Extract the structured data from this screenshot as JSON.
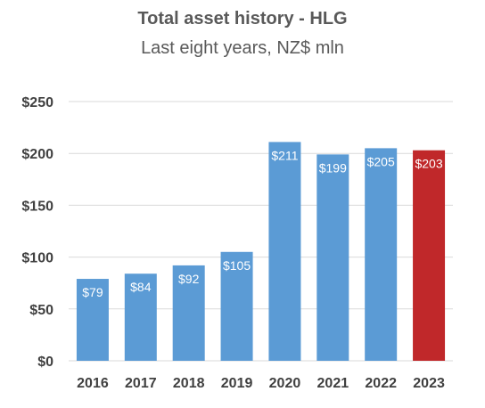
{
  "chart_data": {
    "type": "bar",
    "title": "Total asset history - HLG",
    "subtitle": "Last eight years, NZ$ mln",
    "categories": [
      "2016",
      "2017",
      "2018",
      "2019",
      "2020",
      "2021",
      "2022",
      "2023"
    ],
    "values": [
      79,
      84,
      92,
      105,
      211,
      199,
      205,
      203
    ],
    "data_labels": [
      "$79",
      "$84",
      "$92",
      "$105",
      "$211",
      "$199",
      "$205",
      "$203"
    ],
    "xlabel": "",
    "ylabel": "",
    "ylim": [
      0,
      250
    ],
    "yticks": [
      0,
      50,
      100,
      150,
      200,
      250
    ],
    "ytick_labels": [
      "$0",
      "$50",
      "$100",
      "$150",
      "$200",
      "$250"
    ],
    "grid": true,
    "legend": "none",
    "colors": {
      "default_bar": "#5b9bd5",
      "highlight_bar": "#c0282a",
      "gridline": "#d9d9d9",
      "axis_text": "#404040",
      "label_text": "#ffffff"
    },
    "highlight_category": "2023"
  }
}
